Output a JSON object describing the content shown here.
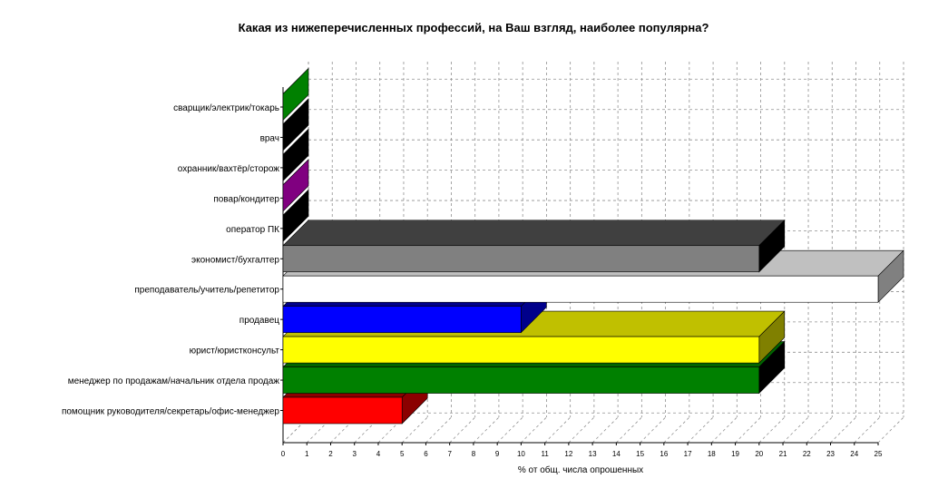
{
  "chart_data": {
    "type": "bar",
    "orientation": "horizontal",
    "title": "Какая из нижеперечисленных профессий, на Ваш взгляд, наиболее популярна?",
    "xlabel": "% от общ. числа опрошенных",
    "ylabel": "",
    "xlim": [
      0,
      25
    ],
    "xticks": [
      "0",
      "1",
      "2",
      "3",
      "4",
      "5",
      "6",
      "7",
      "8",
      "9",
      "10",
      "11",
      "12",
      "13",
      "14",
      "15",
      "16",
      "17",
      "18",
      "19",
      "20",
      "21",
      "22",
      "23",
      "24",
      "25"
    ],
    "grid": true,
    "three_d": true,
    "categories": [
      "сварщик/электрик/токарь",
      "врач",
      "охранник/вахтёр/сторож",
      "повар/кондитер",
      "оператор ПК",
      "экономист/бухгалтер",
      "преподаватель/учитель/репетитор",
      "продавец",
      "юрист/юристконсульт",
      "менеджер по продажам/начальник отдела продаж",
      "помощник руководителя/секретарь/офис-менеджер"
    ],
    "values": [
      0,
      0,
      0,
      0,
      0,
      20,
      25,
      10,
      20,
      20,
      5
    ],
    "colors": {
      "front": [
        "#008000",
        "#000000",
        "#000000",
        "#800080",
        "#404040",
        "#808080",
        "#ffffff",
        "#0000ff",
        "#ffff00",
        "#008000",
        "#ff0000"
      ],
      "top": [
        "#008000",
        "#000000",
        "#000000",
        "#800080",
        "#404040",
        "#404040",
        "#c0c0c0",
        "#00008b",
        "#c0c000",
        "#006400",
        "#8b0000"
      ],
      "side": [
        "#008000",
        "#000000",
        "#000000",
        "#800080",
        "#000000",
        "#000000",
        "#808080",
        "#00008b",
        "#808000",
        "#000000",
        "#8b0000"
      ]
    }
  }
}
